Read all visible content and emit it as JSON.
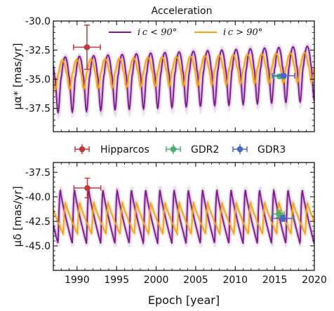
{
  "chart_data": [
    {
      "type": "line",
      "title": "Acceleration",
      "ylabel": "μα* [mas/yr]",
      "xlim": [
        1987,
        2020
      ],
      "ylim": [
        -39.5,
        -30.0
      ],
      "yticks": [
        -30.0,
        -32.5,
        -35.0,
        -37.5
      ],
      "ytick_labels": [
        "-30.0",
        "-32.5",
        "-35.0",
        "-37.5"
      ],
      "grid": false,
      "legend_position": "top-center",
      "colors": {
        "ic_lt_90": "#7b1a8c",
        "ic_gt_90": "#f5a21c"
      },
      "series": [
        {
          "name": "i_c < 90°",
          "color": "#7b1a8c",
          "model": {
            "period": 1.8,
            "phase": 1990.3,
            "mean": -34.3,
            "amp_high": 1.65,
            "amp_low": 3.1,
            "trend": 0.03
          }
        },
        {
          "name": "i_c > 90°",
          "color": "#f5a21c",
          "model": {
            "period": 1.8,
            "phase": 1989.95,
            "mean": -34.1,
            "amp_high": 1.05,
            "amp_low": 1.5,
            "trend": 0.02
          }
        }
      ],
      "points": [
        {
          "name": "Hipparcos",
          "x": 1991.25,
          "y": -32.25,
          "xerr": 1.7,
          "yerr": 1.9,
          "color": "#c0393b"
        },
        {
          "name": "GDR2",
          "x": 2015.6,
          "y": -34.75,
          "xerr": 0.7,
          "yerr": 0.15,
          "color": "#4caf6e"
        },
        {
          "name": "GDR3",
          "x": 2016.1,
          "y": -34.7,
          "xerr": 1.4,
          "yerr": 0.15,
          "color": "#4a66c7"
        }
      ]
    },
    {
      "type": "line",
      "xlabel": "Epoch [year]",
      "ylabel": "μδ [mas/yr]",
      "xlim": [
        1987,
        2020
      ],
      "ylim": [
        -47.5,
        -36.5
      ],
      "xticks": [
        1990,
        1995,
        2000,
        2005,
        2010,
        2015,
        2020
      ],
      "xtick_labels": [
        "1990",
        "1995",
        "2000",
        "2005",
        "2010",
        "2015",
        "2020"
      ],
      "yticks": [
        -37.5,
        -40.0,
        -42.5,
        -45.0
      ],
      "ytick_labels": [
        "-37.5",
        "-40.0",
        "-42.5",
        "-45.0"
      ],
      "grid": false,
      "colors": {
        "ic_lt_90": "#7b1a8c",
        "ic_gt_90": "#f5a21c"
      },
      "series": [
        {
          "name": "i_c < 90°",
          "color": "#7b1a8c",
          "model": {
            "period": 1.8,
            "phase": 1989.4,
            "high": -39.3,
            "low": -44.8
          }
        },
        {
          "name": "i_c > 90°",
          "color": "#f5a21c",
          "model": {
            "period": 1.8,
            "phase": 1990.05,
            "high": -40.6,
            "low": -43.8
          }
        }
      ],
      "points": [
        {
          "name": "Hipparcos",
          "x": 1991.3,
          "y": -39.1,
          "xerr": 1.7,
          "yerr": 1.0,
          "color": "#c0393b"
        },
        {
          "name": "GDR2",
          "x": 2015.5,
          "y": -41.75,
          "xerr": 0.7,
          "yerr": 0.35,
          "color": "#4caf6e"
        },
        {
          "name": "GDR3",
          "x": 2016.0,
          "y": -42.2,
          "xerr": 1.4,
          "yerr": 0.3,
          "color": "#4a66c7"
        }
      ]
    }
  ],
  "legend_top": {
    "items": [
      {
        "label": "i c < 90°",
        "color": "#7b1a8c"
      },
      {
        "label": "i c > 90°",
        "color": "#f5a21c"
      }
    ]
  },
  "legend_mid": {
    "items": [
      {
        "label": "Hipparcos",
        "color": "#c0393b"
      },
      {
        "label": "GDR2",
        "color": "#4caf6e"
      },
      {
        "label": "GDR3",
        "color": "#4a66c7"
      }
    ]
  }
}
